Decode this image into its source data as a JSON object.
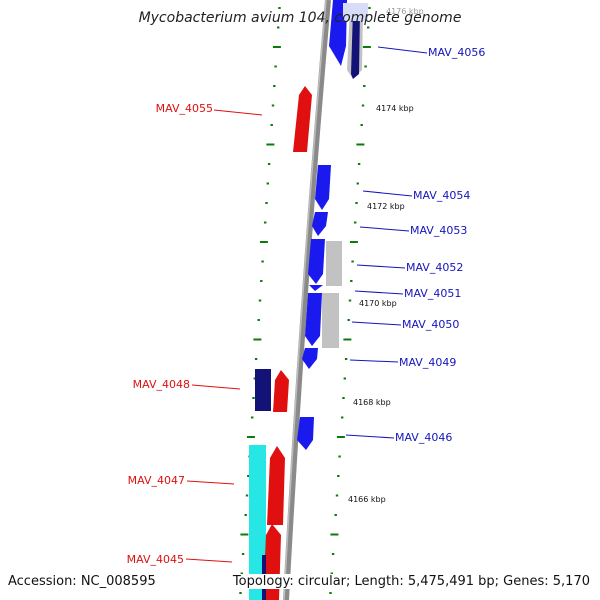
{
  "title": "Mycobacterium avium 104, complete genome",
  "footer": {
    "accession": "Accession: NC_008595",
    "stats": "Topology: circular; Length: 5,475,491 bp; Genes: 5,170"
  },
  "colors": {
    "forward_gene": "#e01010",
    "reverse_gene": "#1a1aee",
    "dark_gene": "#121277",
    "other_gene": "#c2c2c2",
    "cyan_gene": "#27e6e6",
    "backbone": "#8a8a8a",
    "tick": "#0d7a0d",
    "label_red": "#dd1111",
    "label_blue": "#1515bb"
  },
  "scale_labels": [
    "4176 kbp",
    "4174 kbp",
    "4172 kbp",
    "4170 kbp",
    "4168 kbp",
    "4166 kbp"
  ],
  "gene_labels": [
    {
      "text": "MAV_4056",
      "strand": "reverse"
    },
    {
      "text": "MAV_4055",
      "strand": "forward"
    },
    {
      "text": "MAV_4054",
      "strand": "reverse"
    },
    {
      "text": "MAV_4053",
      "strand": "reverse"
    },
    {
      "text": "MAV_4052",
      "strand": "reverse"
    },
    {
      "text": "MAV_4051",
      "strand": "reverse"
    },
    {
      "text": "MAV_4050",
      "strand": "reverse"
    },
    {
      "text": "MAV_4049",
      "strand": "reverse"
    },
    {
      "text": "MAV_4048",
      "strand": "forward"
    },
    {
      "text": "MAV_4046",
      "strand": "reverse"
    },
    {
      "text": "MAV_4047",
      "strand": "forward"
    },
    {
      "text": "MAV_4045",
      "strand": "forward"
    }
  ]
}
